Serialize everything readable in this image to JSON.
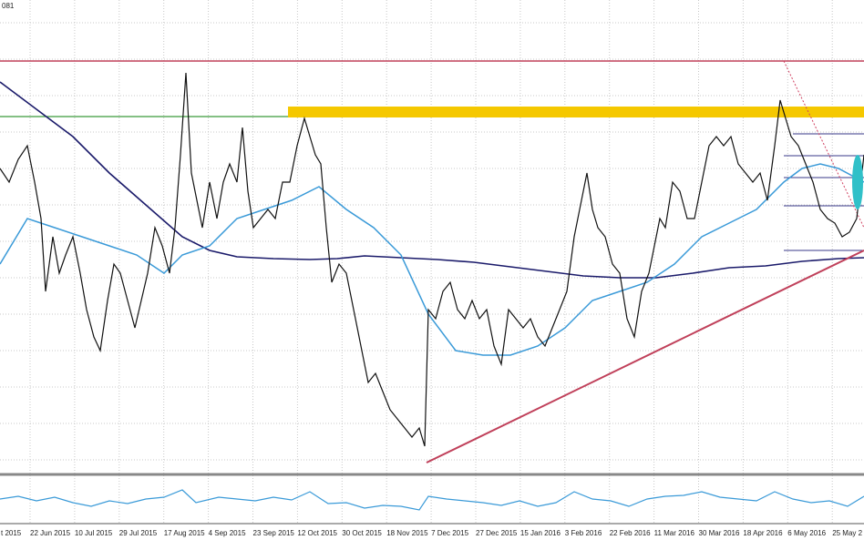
{
  "header": {
    "symbol": "081"
  },
  "x_axis": {
    "labels": [
      "t 2015",
      "22 Jun 2015",
      "10 Jul 2015",
      "29 Jul 2015",
      "17 Aug 2015",
      "4 Sep 2015",
      "23 Sep 2015",
      "12 Oct 2015",
      "30 Oct 2015",
      "18 Nov 2015",
      "7 Dec 2015",
      "27 Dec 2015",
      "15 Jan 2016",
      "3 Feb 2016",
      "22 Feb 2016",
      "11 Mar 2016",
      "30 Mar 2016",
      "18 Apr 2016",
      "6 May 2016",
      "25 May 2"
    ]
  }
}
